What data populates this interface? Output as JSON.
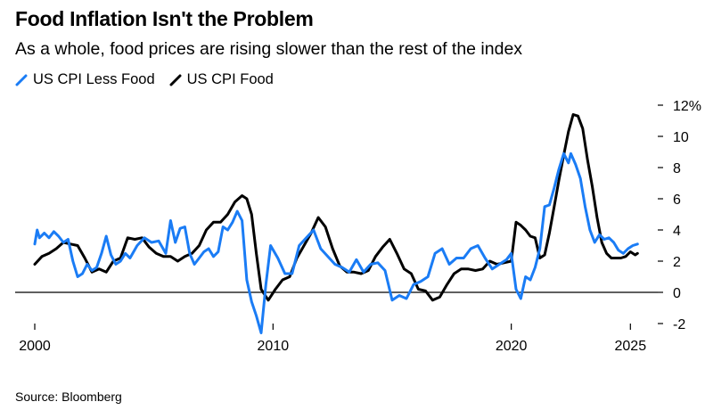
{
  "title": "Food Inflation Isn't the Problem",
  "subtitle": "As a whole, food prices are rising slower than the rest of the index",
  "source": "Source: Bloomberg",
  "colors": {
    "less_food": "#1a7cf5",
    "food": "#000000",
    "axis": "#000000"
  },
  "chart_data": {
    "type": "line",
    "title": "Food Inflation Isn't the Problem",
    "subtitle": "As a whole, food prices are rising slower than the rest of the index",
    "xlabel": "",
    "ylabel": "",
    "y_unit": "%",
    "xlim": [
      2000,
      2025.4
    ],
    "ylim": [
      -2,
      12
    ],
    "x_ticks": [
      2000,
      2010,
      2020,
      2025
    ],
    "y_ticks": [
      12,
      10,
      8,
      6,
      4,
      2,
      0,
      -2
    ],
    "y_tick_labels": [
      "12%",
      "10",
      "8",
      "6",
      "4",
      "2",
      "0",
      "-2"
    ],
    "zero_line": true,
    "grid": false,
    "legend_position": "top-left",
    "series": [
      {
        "name": "US CPI Less Food",
        "color": "#1a7cf5",
        "x": [
          2000.0,
          2000.1,
          2000.2,
          2000.4,
          2000.6,
          2000.8,
          2001.0,
          2001.2,
          2001.4,
          2001.6,
          2001.8,
          2002.0,
          2002.2,
          2002.4,
          2002.6,
          2002.8,
          2003.0,
          2003.2,
          2003.4,
          2003.6,
          2003.8,
          2004.0,
          2004.3,
          2004.6,
          2004.9,
          2005.2,
          2005.5,
          2005.7,
          2005.9,
          2006.1,
          2006.3,
          2006.5,
          2006.7,
          2006.9,
          2007.1,
          2007.3,
          2007.5,
          2007.7,
          2007.9,
          2008.1,
          2008.3,
          2008.5,
          2008.7,
          2008.9,
          2009.1,
          2009.3,
          2009.5,
          2009.7,
          2009.9,
          2010.2,
          2010.5,
          2010.8,
          2011.1,
          2011.4,
          2011.7,
          2012.0,
          2012.3,
          2012.6,
          2012.9,
          2013.2,
          2013.5,
          2013.8,
          2014.1,
          2014.4,
          2014.7,
          2015.0,
          2015.3,
          2015.6,
          2015.9,
          2016.2,
          2016.5,
          2016.8,
          2017.1,
          2017.4,
          2017.7,
          2018.0,
          2018.3,
          2018.6,
          2018.9,
          2019.2,
          2019.5,
          2019.8,
          2020.0,
          2020.2,
          2020.4,
          2020.6,
          2020.8,
          2021.0,
          2021.2,
          2021.4,
          2021.6,
          2021.8,
          2022.0,
          2022.2,
          2022.4,
          2022.5,
          2022.7,
          2022.9,
          2023.1,
          2023.3,
          2023.5,
          2023.7,
          2023.9,
          2024.1,
          2024.3,
          2024.5,
          2024.7,
          2024.9,
          2025.1,
          2025.3
        ],
        "values": [
          3.1,
          4.0,
          3.5,
          3.8,
          3.5,
          3.9,
          3.6,
          3.2,
          3.4,
          2.0,
          1.0,
          1.2,
          1.8,
          1.4,
          1.6,
          2.5,
          3.6,
          2.4,
          1.8,
          2.0,
          2.5,
          2.2,
          3.0,
          3.5,
          3.2,
          3.3,
          2.5,
          4.6,
          3.2,
          4.1,
          4.2,
          2.5,
          1.8,
          2.2,
          2.6,
          2.8,
          2.3,
          2.6,
          4.2,
          4.0,
          4.5,
          5.2,
          4.6,
          0.8,
          -0.6,
          -1.5,
          -2.6,
          0.5,
          3.0,
          2.2,
          1.2,
          1.2,
          3.0,
          3.5,
          4.0,
          2.8,
          2.3,
          1.8,
          1.6,
          1.3,
          2.1,
          1.3,
          1.8,
          1.9,
          1.4,
          -0.5,
          -0.2,
          -0.4,
          0.5,
          0.7,
          1.0,
          2.5,
          2.8,
          1.8,
          2.2,
          2.2,
          2.8,
          3.0,
          2.2,
          1.5,
          1.8,
          2.1,
          2.5,
          0.2,
          -0.4,
          1.0,
          0.8,
          1.6,
          2.8,
          5.5,
          5.6,
          6.7,
          7.9,
          8.9,
          8.3,
          8.9,
          8.2,
          7.3,
          5.5,
          4.0,
          3.2,
          3.7,
          3.4,
          3.5,
          3.2,
          2.7,
          2.5,
          2.8,
          3.0,
          3.1
        ]
      },
      {
        "name": "US CPI Food",
        "color": "#000000",
        "x": [
          2000.0,
          2000.3,
          2000.6,
          2000.9,
          2001.2,
          2001.5,
          2001.8,
          2002.1,
          2002.4,
          2002.7,
          2003.0,
          2003.3,
          2003.6,
          2003.9,
          2004.2,
          2004.5,
          2004.8,
          2005.1,
          2005.4,
          2005.7,
          2006.0,
          2006.3,
          2006.6,
          2006.9,
          2007.2,
          2007.5,
          2007.8,
          2008.1,
          2008.4,
          2008.7,
          2008.9,
          2009.1,
          2009.3,
          2009.5,
          2009.8,
          2010.1,
          2010.4,
          2010.7,
          2011.0,
          2011.3,
          2011.6,
          2011.9,
          2012.2,
          2012.5,
          2012.8,
          2013.1,
          2013.4,
          2013.7,
          2014.0,
          2014.3,
          2014.6,
          2014.9,
          2015.2,
          2015.5,
          2015.8,
          2016.1,
          2016.4,
          2016.7,
          2017.0,
          2017.3,
          2017.6,
          2017.9,
          2018.2,
          2018.5,
          2018.8,
          2019.1,
          2019.4,
          2019.7,
          2020.0,
          2020.2,
          2020.4,
          2020.6,
          2020.8,
          2021.0,
          2021.2,
          2021.4,
          2021.6,
          2021.8,
          2022.0,
          2022.2,
          2022.4,
          2022.6,
          2022.8,
          2023.0,
          2023.2,
          2023.4,
          2023.6,
          2023.8,
          2024.0,
          2024.2,
          2024.4,
          2024.6,
          2024.8,
          2025.0,
          2025.2,
          2025.3
        ],
        "values": [
          1.8,
          2.3,
          2.5,
          2.8,
          3.2,
          3.1,
          3.0,
          2.2,
          1.3,
          1.5,
          1.3,
          2.0,
          2.2,
          3.5,
          3.4,
          3.5,
          2.9,
          2.5,
          2.3,
          2.3,
          2.0,
          2.3,
          2.5,
          3.0,
          4.0,
          4.5,
          4.5,
          5.0,
          5.8,
          6.2,
          6.0,
          5.0,
          2.5,
          0.2,
          -0.5,
          0.2,
          0.8,
          1.0,
          2.2,
          3.0,
          3.8,
          4.8,
          4.2,
          2.8,
          1.7,
          1.3,
          1.3,
          1.2,
          1.4,
          2.3,
          2.9,
          3.4,
          2.5,
          1.5,
          1.2,
          0.2,
          0.1,
          -0.5,
          -0.3,
          0.5,
          1.2,
          1.5,
          1.5,
          1.4,
          1.5,
          2.0,
          1.8,
          1.9,
          2.0,
          4.5,
          4.3,
          4.0,
          3.6,
          3.5,
          2.2,
          2.4,
          3.8,
          5.5,
          7.2,
          8.8,
          10.3,
          11.4,
          11.3,
          10.5,
          8.5,
          6.8,
          4.8,
          3.2,
          2.5,
          2.2,
          2.2,
          2.2,
          2.3,
          2.6,
          2.4,
          2.5
        ]
      }
    ]
  }
}
